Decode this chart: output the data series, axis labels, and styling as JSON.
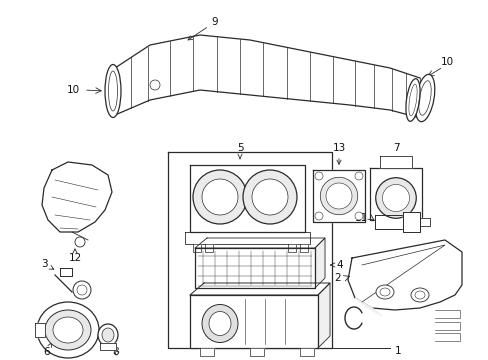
{
  "bg_color": "#ffffff",
  "line_color": "#2a2a2a",
  "text_color": "#111111",
  "fig_width": 4.89,
  "fig_height": 3.6,
  "dpi": 100
}
